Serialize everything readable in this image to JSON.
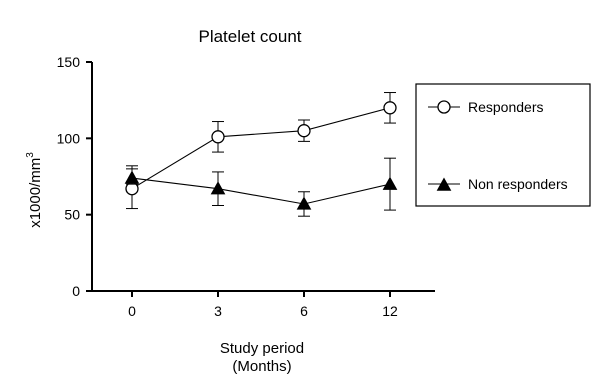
{
  "chart_data": {
    "type": "line",
    "title": "Platelet count",
    "xlabel_line1": "Study period",
    "xlabel_line2": "(Months)",
    "ylabel_base": "x1000/mm",
    "ylabel_sup": "3",
    "categories": [
      "0",
      "3",
      "6",
      "12"
    ],
    "ylim": [
      0,
      150
    ],
    "yticks": [
      0,
      50,
      100,
      150
    ],
    "grid": false,
    "legend_position": "right",
    "series": [
      {
        "name": "Responders",
        "marker": "open-circle",
        "values": [
          67,
          101,
          105,
          120
        ],
        "err_low": [
          13,
          10,
          7,
          10
        ],
        "err_high": [
          13,
          10,
          7,
          10
        ]
      },
      {
        "name": "Non responders",
        "marker": "filled-triangle",
        "values": [
          74,
          67,
          57,
          70
        ],
        "err_low": [
          4,
          11,
          8,
          17
        ],
        "err_high": [
          8,
          11,
          8,
          17
        ]
      }
    ]
  }
}
